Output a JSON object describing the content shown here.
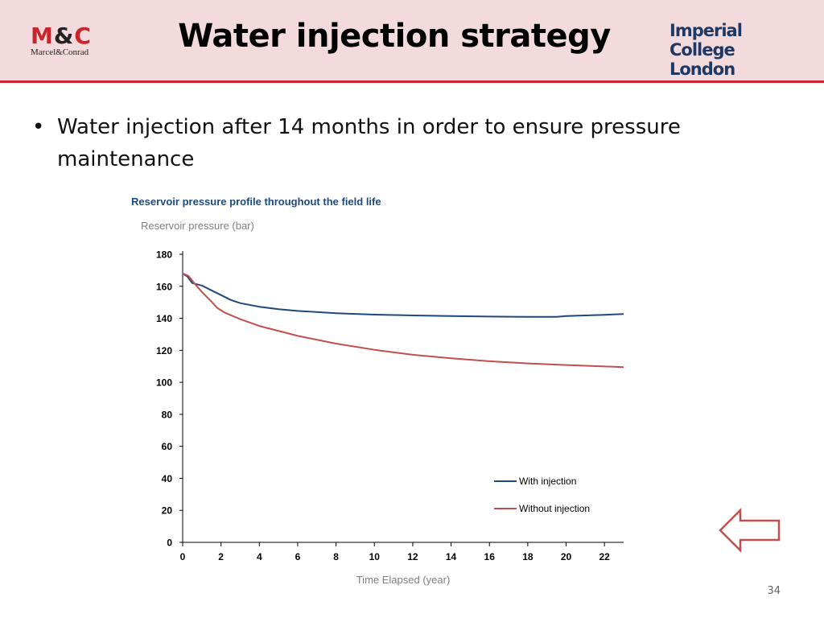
{
  "slide": {
    "title": "Water injection strategy",
    "bullet": "Water injection after 14 months in order to ensure pressure maintenance",
    "page_number": "34"
  },
  "logos": {
    "left_mark_m": "M",
    "left_mark_amp": "&",
    "left_mark_c": "C",
    "left_sub": "Marcel&Conrad",
    "right_line1": "Imperial College",
    "right_line2": "London"
  },
  "colors": {
    "header_bg": "#f3dadc",
    "accent_red": "#c8262a",
    "navy": "#1f3864",
    "series_with": "#1f497d",
    "series_without": "#c0504d"
  },
  "icons": {
    "back": "left-arrow-icon"
  },
  "chart_data": {
    "type": "line",
    "title": "Reservoir pressure profile throughout the field life",
    "ylabel": "Reservoir pressure (bar)",
    "xlabel": "Time Elapsed (year)",
    "xlim": [
      0,
      23
    ],
    "ylim": [
      0,
      180
    ],
    "xticks": [
      0,
      2,
      4,
      6,
      8,
      10,
      12,
      14,
      16,
      18,
      20,
      22
    ],
    "yticks": [
      0,
      20,
      40,
      60,
      80,
      100,
      120,
      140,
      160,
      180
    ],
    "grid": false,
    "legend_position": "bottom-right",
    "series": [
      {
        "name": "With injection",
        "color": "#1f497d",
        "points": [
          [
            0,
            168
          ],
          [
            0.25,
            166
          ],
          [
            0.5,
            162
          ],
          [
            1,
            160.5
          ],
          [
            1.5,
            157.5
          ],
          [
            2,
            154.5
          ],
          [
            2.5,
            151.5
          ],
          [
            3,
            149.5
          ],
          [
            4,
            147.2
          ],
          [
            5,
            145.7
          ],
          [
            6,
            144.6
          ],
          [
            8,
            143.2
          ],
          [
            10,
            142.3
          ],
          [
            12,
            141.8
          ],
          [
            14,
            141.4
          ],
          [
            16,
            141.1
          ],
          [
            18,
            140.9
          ],
          [
            19.5,
            140.9
          ],
          [
            20,
            141.4
          ],
          [
            21,
            141.8
          ],
          [
            22,
            142.2
          ],
          [
            23,
            142.7
          ]
        ]
      },
      {
        "name": "Without injection",
        "color": "#c0504d",
        "points": [
          [
            0,
            168
          ],
          [
            0.3,
            166.5
          ],
          [
            0.6,
            162
          ],
          [
            1,
            156.5
          ],
          [
            1.5,
            150.5
          ],
          [
            1.8,
            146.5
          ],
          [
            2.2,
            143.5
          ],
          [
            3,
            139.5
          ],
          [
            4,
            135.2
          ],
          [
            6,
            129
          ],
          [
            8,
            124.2
          ],
          [
            10,
            120.3
          ],
          [
            12,
            117.2
          ],
          [
            14,
            115
          ],
          [
            16,
            113.2
          ],
          [
            18,
            111.8
          ],
          [
            20,
            110.8
          ],
          [
            22,
            109.9
          ],
          [
            23,
            109.5
          ]
        ]
      }
    ]
  }
}
